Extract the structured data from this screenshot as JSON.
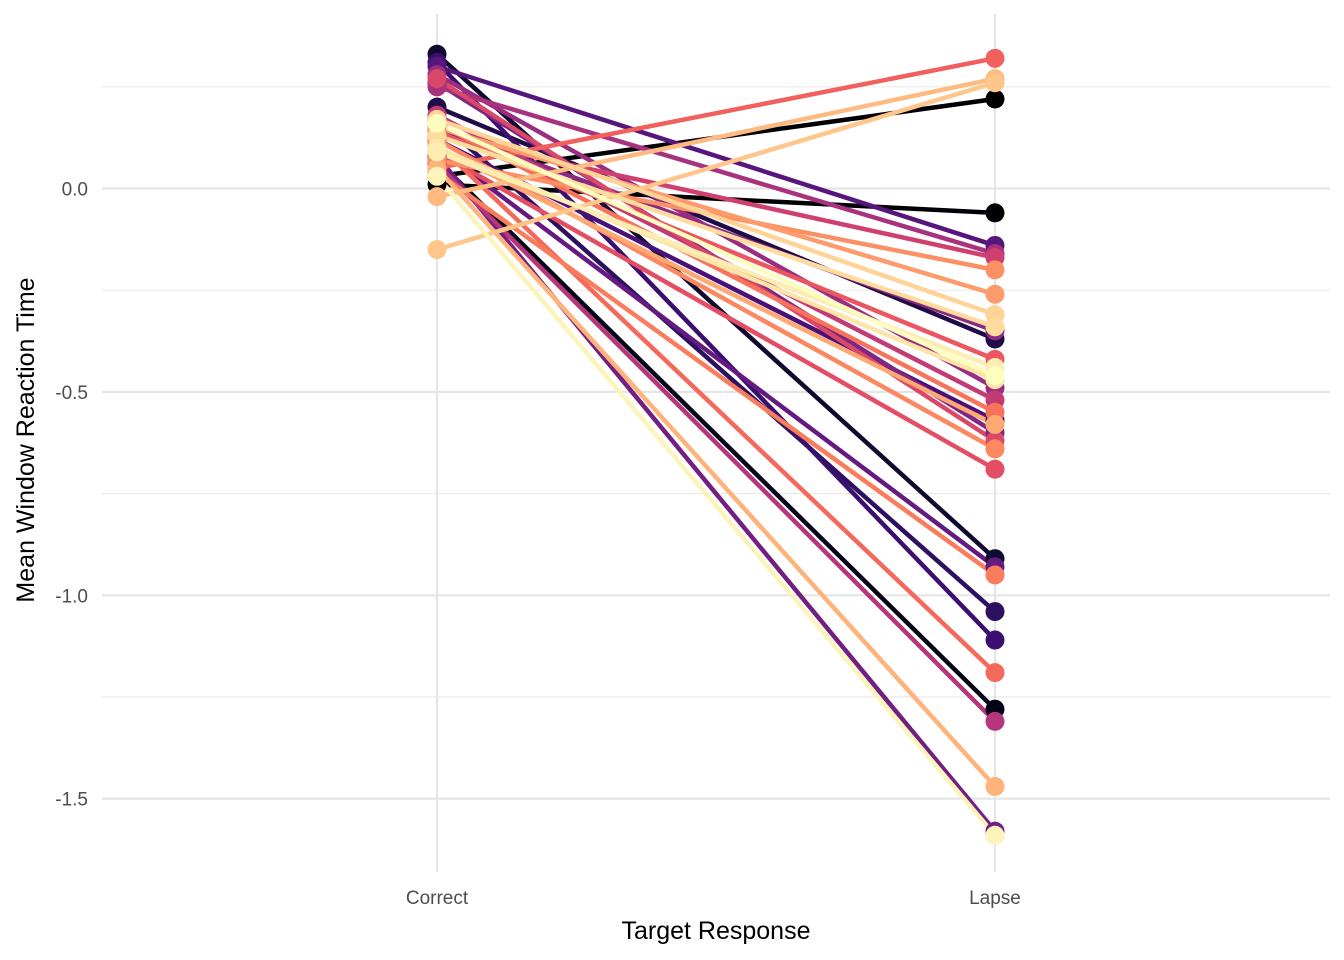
{
  "chart_data": {
    "type": "line",
    "title": "",
    "xlabel": "Target Response",
    "ylabel": "Mean Window Reaction Time",
    "categories": [
      "Correct",
      "Lapse"
    ],
    "yticks": [
      0.0,
      -0.5,
      -1.0,
      -1.5
    ],
    "ytick_labels": [
      "0.0",
      "-0.5",
      "-1.0",
      "-1.5"
    ],
    "ylim": [
      -1.67,
      0.36
    ],
    "grid": true,
    "legend": "none",
    "colormap": "magma",
    "series": [
      {
        "values": [
          0.03,
          0.22
        ],
        "color": "#000004"
      },
      {
        "values": [
          0.01,
          -0.06
        ],
        "color": "#000004"
      },
      {
        "values": [
          0.07,
          -1.28
        ],
        "color": "#050417"
      },
      {
        "values": [
          0.33,
          -0.91
        ],
        "color": "#100a2f"
      },
      {
        "values": [
          0.2,
          -0.37
        ],
        "color": "#1f0c48"
      },
      {
        "values": [
          0.17,
          -1.04
        ],
        "color": "#2d1160"
      },
      {
        "values": [
          0.31,
          -1.11
        ],
        "color": "#3b0f70"
      },
      {
        "values": [
          0.12,
          -0.57
        ],
        "color": "#4a1079"
      },
      {
        "values": [
          0.3,
          -0.14
        ],
        "color": "#57157e"
      },
      {
        "values": [
          0.1,
          -0.93
        ],
        "color": "#641a80"
      },
      {
        "values": [
          0.08,
          -1.58
        ],
        "color": "#721f81"
      },
      {
        "values": [
          0.26,
          -0.6
        ],
        "color": "#7f2582"
      },
      {
        "values": [
          0.15,
          -0.35
        ],
        "color": "#8c2981"
      },
      {
        "values": [
          0.28,
          -0.49
        ],
        "color": "#9a2d80"
      },
      {
        "values": [
          0.25,
          -0.16
        ],
        "color": "#a8327d"
      },
      {
        "values": [
          0.06,
          -1.31
        ],
        "color": "#b5367a"
      },
      {
        "values": [
          0.18,
          -0.52
        ],
        "color": "#c33b75"
      },
      {
        "values": [
          0.13,
          -0.17
        ],
        "color": "#cf4070"
      },
      {
        "values": [
          0.27,
          -0.62
        ],
        "color": "#da4869"
      },
      {
        "values": [
          0.09,
          -0.69
        ],
        "color": "#e34e65"
      },
      {
        "values": [
          0.14,
          -0.42
        ],
        "color": "#ea5661"
      },
      {
        "values": [
          0.05,
          0.32
        ],
        "color": "#f1605d"
      },
      {
        "values": [
          0.11,
          -1.19
        ],
        "color": "#f4695c"
      },
      {
        "values": [
          0.16,
          -0.55
        ],
        "color": "#f7735c"
      },
      {
        "values": [
          0.04,
          -0.95
        ],
        "color": "#f97c5d"
      },
      {
        "values": [
          0.12,
          -0.64
        ],
        "color": "#fb8861"
      },
      {
        "values": [
          0.07,
          -0.2
        ],
        "color": "#fc9065"
      },
      {
        "values": [
          0.15,
          -0.26
        ],
        "color": "#fd9b6b"
      },
      {
        "values": [
          0.1,
          -0.58
        ],
        "color": "#fea973"
      },
      {
        "values": [
          0.05,
          -1.47
        ],
        "color": "#feb37b"
      },
      {
        "values": [
          -0.02,
          0.27
        ],
        "color": "#febb81"
      },
      {
        "values": [
          -0.15,
          0.26
        ],
        "color": "#fec68a"
      },
      {
        "values": [
          0.17,
          -0.31
        ],
        "color": "#fed395"
      },
      {
        "values": [
          0.13,
          -0.34
        ],
        "color": "#fddc9e"
      },
      {
        "values": [
          0.1,
          -0.47
        ],
        "color": "#fde5a7"
      },
      {
        "values": [
          0.09,
          -0.44
        ],
        "color": "#fcedb2"
      },
      {
        "values": [
          0.03,
          -1.59
        ],
        "color": "#fcf4ba"
      },
      {
        "values": [
          0.16,
          -0.46
        ],
        "color": "#fcfdbf"
      }
    ]
  }
}
